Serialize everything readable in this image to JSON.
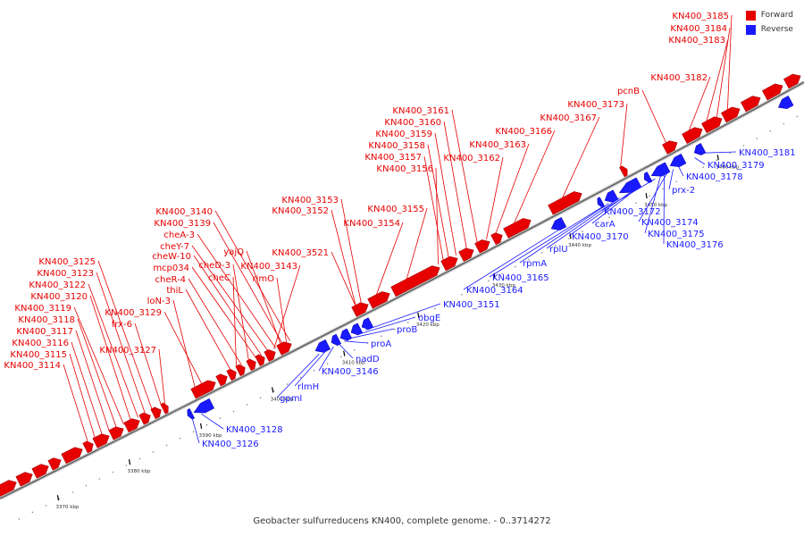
{
  "title": "Geobacter sulfurreducens KN400, complete genome. - 0..3714272",
  "colors": {
    "forward": "#e60000",
    "reverse": "#1a1aff",
    "backbone": "#aaaaaa"
  },
  "legend": [
    {
      "label": "Forward",
      "color": "#e60000"
    },
    {
      "label": "Reverse",
      "color": "#1a1aff"
    }
  ],
  "chart_data": {
    "type": "genome-map",
    "ticks": [
      "3370 kbp",
      "3380 kbp",
      "3390 kbp",
      "3400 kbp",
      "3410 kbp",
      "3420 kbp",
      "3430 kbp",
      "3440 kbp",
      "3450 kbp",
      "3460 kbp"
    ],
    "forward_labels": [
      "KN400_3185",
      "KN400_3184",
      "KN400_3183",
      "KN400_3182",
      "pcnB",
      "KN400_3173",
      "KN400_3167",
      "KN400_3166",
      "KN400_3163",
      "KN400_3162",
      "KN400_3161",
      "KN400_3160",
      "KN400_3159",
      "KN400_3158",
      "KN400_3157",
      "KN400_3156",
      "KN400_3153",
      "KN400_3152",
      "KN400_3155",
      "KN400_3154",
      "KN400_3140",
      "KN400_3139",
      "cheA-3",
      "cheY-7",
      "yajQ",
      "cheW-10",
      "mcp034",
      "cheD-3",
      "KN400_3143",
      "KN400_3521",
      "cheR-4",
      "cheC",
      "rimO",
      "thiL",
      "KN400_3125",
      "KN400_3123",
      "KN400_3122",
      "KN400_3120",
      "KN400_3129",
      "loN-3",
      "KN400_3119",
      "frx-6",
      "KN400_3118",
      "KN400_3117",
      "KN400_3116",
      "KN400_3127",
      "KN400_3115",
      "KN400_3114"
    ],
    "reverse_labels": [
      "KN400_3181",
      "KN400_3179",
      "KN400_3178",
      "prx-2",
      "KN400_3172",
      "carA",
      "KN400_3174",
      "KN400_3175",
      "KN400_3176",
      "rplU",
      "KN400_3170",
      "rpmA",
      "KN400_3165",
      "KN400_3164",
      "KN400_3151",
      "obgE",
      "proB",
      "proA",
      "nadD",
      "KN400_3146",
      "rlmH",
      "gpmI",
      "KN400_3128",
      "KN400_3126"
    ]
  }
}
